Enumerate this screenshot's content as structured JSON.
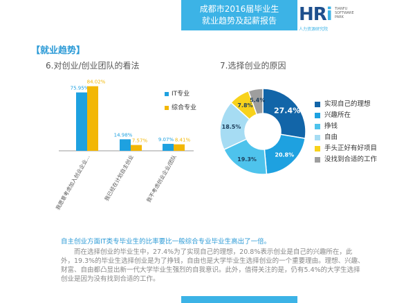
{
  "header": {
    "title_line1": "成都市2016届毕业生",
    "title_line2": "就业趋势及起薪报告"
  },
  "logo": {
    "mark_h": "HR",
    "mark_i": "i",
    "sub1": "TIANFU",
    "sub2": "SOFTWARE",
    "sub3": "PARK",
    "cn": "人力资源研究院"
  },
  "section_title": "【就业趋势】",
  "colors": {
    "it": "#1ea1e0",
    "general": "#f2b705",
    "accent": "#3cb3e6"
  },
  "chart_data": [
    {
      "type": "bar",
      "title": "6.对创业/创业团队的看法",
      "categories": [
        "我愿意考虑加入创业企业…",
        "我已经在计划自主创业",
        "我不考虑创业企业/团队"
      ],
      "series": [
        {
          "name": "IT专业",
          "values": [
            75.95,
            14.98,
            9.07
          ],
          "labels": [
            "75.95%",
            "14.98%",
            "9.07%"
          ]
        },
        {
          "name": "综合专业",
          "values": [
            84.02,
            7.57,
            8.41
          ],
          "labels": [
            "84.02%",
            "7.57%",
            "8.41%"
          ]
        }
      ],
      "ylim": [
        0,
        90
      ],
      "legend": "right"
    },
    {
      "type": "pie",
      "title": "7.选择创业的原因",
      "labels": [
        "实现自己的理想",
        "兴趣所在",
        "挣钱",
        "自由",
        "手头正好有好项目",
        "没找到合适的工作"
      ],
      "values": [
        27.4,
        20.8,
        19.3,
        18.5,
        7.8,
        5.4
      ],
      "data_labels": [
        "27.4%",
        "20.8%",
        "19.3%",
        "18.5%",
        "7.8%",
        "5.4%"
      ],
      "colors": [
        "#1265a8",
        "#1ea1e0",
        "#4ec3ec",
        "#a6dcf3",
        "#f8d21b",
        "#9e9e9e"
      ],
      "legend": "right"
    }
  ],
  "text": {
    "highlight": "自主创业方面IT类专毕业生的比率要比一般综合专业毕业生高出了一倍。",
    "paragraph": "而在选择创业的毕业生中，27.4%为了实现自己的理想，20.8%表示创业是自己的兴趣所在，此外，19.3%的毕业生选择创业是为了挣钱，自由也是大学毕业生选择创业的一个重要理由。理想、兴趣、财富、自由都凸显出新一代大学毕业生强烈的自我意识。此外，值得关注的是，仍有5.4%的大学生选择创业是因为没有找到合适的工作。"
  }
}
